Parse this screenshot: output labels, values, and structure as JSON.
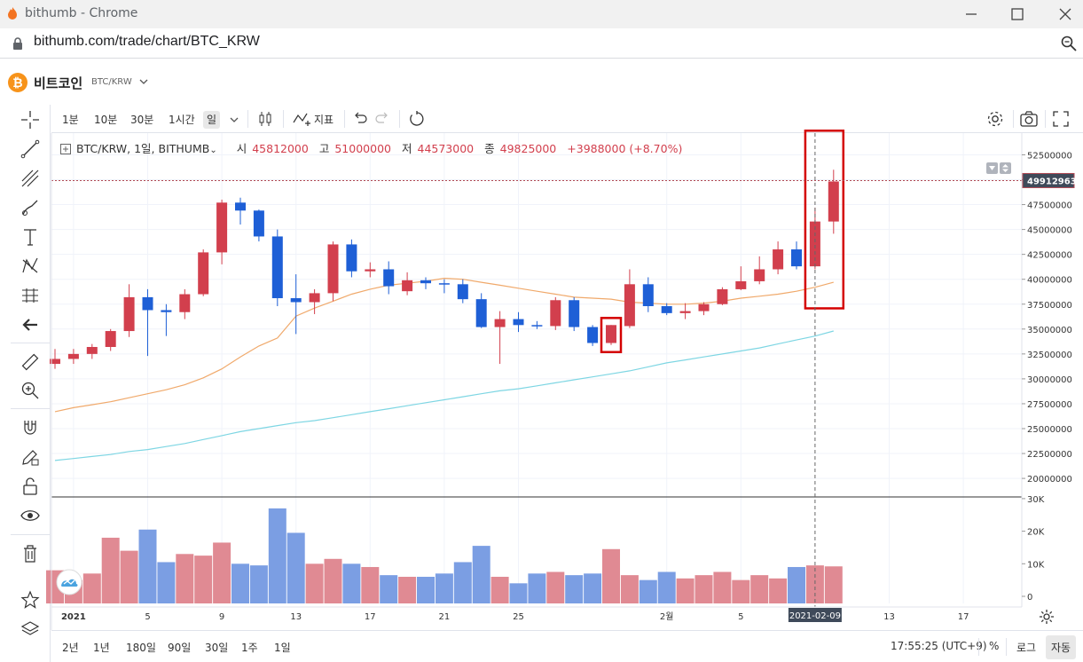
{
  "window": {
    "title": "bithumb - Chrome",
    "url": "bithumb.com/trade/chart/BTC_KRW"
  },
  "coin": {
    "name": "비트코인",
    "pair": "BTC/KRW"
  },
  "toolbar": {
    "timeframes": [
      "1분",
      "10분",
      "30분",
      "1시간",
      "일"
    ],
    "active_timeframe": "일",
    "indicators_label": "지표"
  },
  "legend": {
    "symbol": "BTC/KRW, 1일, BITHUMB",
    "open_label": "시",
    "open": "45812000",
    "high_label": "고",
    "high": "51000000",
    "low_label": "저",
    "low": "44573000",
    "close_label": "종",
    "close": "49825000",
    "change": "+3988000 (+8.70%)"
  },
  "colors": {
    "up": "#d23f4d",
    "down": "#1e5fd6",
    "ma_short": "#f0a96b",
    "ma_long": "#7ed6e3",
    "highlight": "#d40000"
  },
  "bottom": {
    "ranges": [
      "2년",
      "1년",
      "180일",
      "90일",
      "30일",
      "1주",
      "1일"
    ],
    "clock": "17:55:25 (UTC+9)",
    "pct_label": "%",
    "log_label": "로그",
    "auto_label": "자동"
  },
  "chart_data": {
    "type": "candlestick",
    "price_axis_ticks": [
      "52500000",
      "50000000",
      "47500000",
      "45000000",
      "42500000",
      "40000000",
      "37500000",
      "35000000",
      "32500000",
      "30000000",
      "27500000",
      "25000000",
      "22500000",
      "20000000"
    ],
    "volume_axis_ticks": [
      "30K",
      "20K",
      "10K",
      "0"
    ],
    "x_tick_labels": [
      {
        "label": "2021",
        "index": 1
      },
      {
        "label": "5",
        "index": 5
      },
      {
        "label": "9",
        "index": 9
      },
      {
        "label": "13",
        "index": 13
      },
      {
        "label": "17",
        "index": 17
      },
      {
        "label": "21",
        "index": 21
      },
      {
        "label": "25",
        "index": 25
      },
      {
        "label": "2월",
        "index": 33
      },
      {
        "label": "5",
        "index": 37
      },
      {
        "label": "13",
        "index": 45
      },
      {
        "label": "17",
        "index": 49
      }
    ],
    "crosshair_date": "2021-02-09",
    "crosshair_index": 41,
    "last_price_label": "49912963",
    "last_price": 49912963,
    "candles": [
      [
        31500000,
        33000000,
        31000000,
        32000000,
        8000
      ],
      [
        32000000,
        33000000,
        31500000,
        32500000,
        5000
      ],
      [
        32500000,
        33500000,
        32000000,
        33200000,
        7000
      ],
      [
        33200000,
        35000000,
        32800000,
        34800000,
        18000
      ],
      [
        34800000,
        39500000,
        34200000,
        38200000,
        14000
      ],
      [
        38200000,
        39000000,
        32300000,
        36900000,
        20500
      ],
      [
        36900000,
        37500000,
        34300000,
        36700000,
        10500
      ],
      [
        36700000,
        39000000,
        36000000,
        38500000,
        13000
      ],
      [
        38500000,
        43000000,
        38300000,
        42700000,
        12500
      ],
      [
        42700000,
        48000000,
        41500000,
        47700000,
        16500
      ],
      [
        47700000,
        48200000,
        45500000,
        46900000,
        10000
      ],
      [
        46900000,
        47000000,
        43800000,
        44300000,
        9500
      ],
      [
        44300000,
        45000000,
        37300000,
        38100000,
        27000
      ],
      [
        38100000,
        40500000,
        34500000,
        37700000,
        19500
      ],
      [
        37700000,
        39000000,
        36500000,
        38600000,
        10000
      ],
      [
        38600000,
        43800000,
        37800000,
        43500000,
        11500
      ],
      [
        43500000,
        44000000,
        40200000,
        40800000,
        10000
      ],
      [
        40800000,
        41700000,
        40200000,
        41000000,
        9000
      ],
      [
        41000000,
        41800000,
        38500000,
        39300000,
        6500
      ],
      [
        38800000,
        40700000,
        38400000,
        39900000,
        6000
      ],
      [
        39900000,
        40200000,
        39000000,
        39600000,
        6000
      ],
      [
        39600000,
        40000000,
        38600000,
        39500000,
        7000
      ],
      [
        39500000,
        40000000,
        37600000,
        38000000,
        10500
      ],
      [
        38000000,
        38600000,
        35100000,
        35200000,
        15500
      ],
      [
        35200000,
        36800000,
        31500000,
        36000000,
        6000
      ],
      [
        36000000,
        36700000,
        34700000,
        35400000,
        4000
      ],
      [
        35400000,
        35800000,
        35000000,
        35300000,
        7000
      ],
      [
        35300000,
        38200000,
        34900000,
        37900000,
        7500
      ],
      [
        37900000,
        38200000,
        34800000,
        35200000,
        6500
      ],
      [
        35200000,
        35400000,
        33300000,
        33600000,
        7000
      ],
      [
        33600000,
        35400000,
        33400000,
        35400000,
        14500
      ],
      [
        35300000,
        41000000,
        35100000,
        39500000,
        6500
      ],
      [
        39500000,
        40200000,
        36700000,
        37300000,
        5000
      ],
      [
        37300000,
        37600000,
        36400000,
        36600000,
        7500
      ],
      [
        36600000,
        37600000,
        36000000,
        36800000,
        5500
      ],
      [
        36800000,
        37700000,
        36400000,
        37500000,
        6500
      ],
      [
        37500000,
        39200000,
        37400000,
        39000000,
        7500
      ],
      [
        39000000,
        41300000,
        38900000,
        39800000,
        5000
      ],
      [
        39800000,
        42300000,
        39500000,
        41000000,
        6500
      ],
      [
        41000000,
        43800000,
        40500000,
        43000000,
        5500
      ],
      [
        43000000,
        43800000,
        41000000,
        41300000,
        9000
      ],
      [
        41300000,
        47200000,
        41000000,
        45800000,
        9500
      ],
      [
        45800000,
        51000000,
        44573000,
        49825000,
        9200
      ]
    ],
    "ma_short": [
      26700000,
      27100000,
      27400000,
      27700000,
      28100000,
      28500000,
      28900000,
      29400000,
      30100000,
      31000000,
      32200000,
      33300000,
      34100000,
      36300000,
      37100000,
      37800000,
      38500000,
      39000000,
      39400000,
      39600000,
      39800000,
      40100000,
      40000000,
      39700000,
      39400000,
      39100000,
      38800000,
      38500000,
      38200000,
      38100000,
      38000000,
      37700000,
      37600000,
      37500000,
      37500000,
      37600000,
      37800000,
      38100000,
      38300000,
      38500000,
      38800000,
      39200000,
      39700000
    ],
    "ma_long": [
      21800000,
      22000000,
      22200000,
      22400000,
      22700000,
      22900000,
      23200000,
      23500000,
      23900000,
      24300000,
      24700000,
      25000000,
      25300000,
      25600000,
      25800000,
      26100000,
      26400000,
      26700000,
      27000000,
      27300000,
      27600000,
      27900000,
      28200000,
      28500000,
      28800000,
      29000000,
      29300000,
      29600000,
      29900000,
      30200000,
      30500000,
      30800000,
      31200000,
      31600000,
      31900000,
      32200000,
      32500000,
      32800000,
      33100000,
      33500000,
      33900000,
      34300000,
      34800000
    ],
    "highlight_candles": [
      30,
      41,
      42
    ]
  }
}
